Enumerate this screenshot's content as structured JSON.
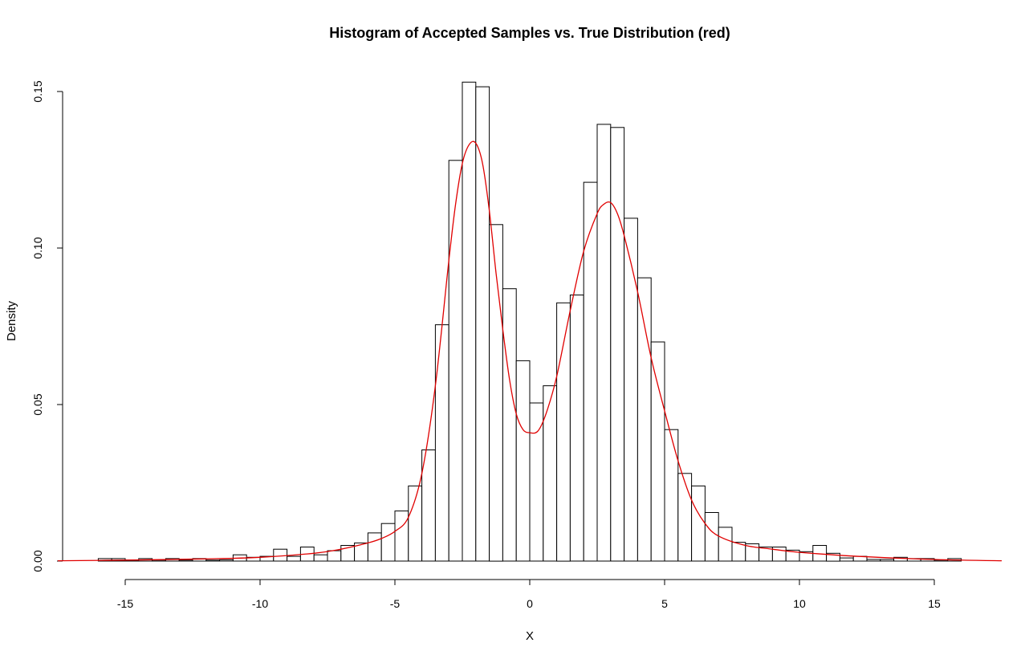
{
  "chart_data": {
    "type": "bar",
    "title": "Histogram of Accepted Samples vs. True Distribution (red)",
    "xlabel": "X",
    "ylabel": "Density",
    "xlim": [
      -17.5,
      17.5
    ],
    "ylim": [
      0,
      0.15
    ],
    "x_ticks": [
      "-15",
      "-10",
      "-5",
      "0",
      "5",
      "10",
      "15"
    ],
    "y_ticks": [
      "0.00",
      "0.05",
      "0.10",
      "0.15"
    ],
    "grid": false,
    "legend": "none",
    "bin_width": 0.5,
    "bins": [
      {
        "start": -16.0,
        "value": 0.0008
      },
      {
        "start": -15.5,
        "value": 0.0008
      },
      {
        "start": -15.0,
        "value": 0.0003
      },
      {
        "start": -14.5,
        "value": 0.0008
      },
      {
        "start": -14.0,
        "value": 0.0003
      },
      {
        "start": -13.5,
        "value": 0.0008
      },
      {
        "start": -13.0,
        "value": 0.0003
      },
      {
        "start": -12.5,
        "value": 0.0008
      },
      {
        "start": -12.0,
        "value": 0.0003
      },
      {
        "start": -11.5,
        "value": 0.0004
      },
      {
        "start": -11.0,
        "value": 0.002
      },
      {
        "start": -10.5,
        "value": 0.0012
      },
      {
        "start": -10.0,
        "value": 0.0015
      },
      {
        "start": -9.5,
        "value": 0.0038
      },
      {
        "start": -9.0,
        "value": 0.0015
      },
      {
        "start": -8.5,
        "value": 0.0045
      },
      {
        "start": -8.0,
        "value": 0.002
      },
      {
        "start": -7.5,
        "value": 0.0033
      },
      {
        "start": -7.0,
        "value": 0.005
      },
      {
        "start": -6.5,
        "value": 0.0058
      },
      {
        "start": -6.0,
        "value": 0.009
      },
      {
        "start": -5.5,
        "value": 0.012
      },
      {
        "start": -5.0,
        "value": 0.016
      },
      {
        "start": -4.5,
        "value": 0.024
      },
      {
        "start": -4.0,
        "value": 0.0355
      },
      {
        "start": -3.5,
        "value": 0.0755
      },
      {
        "start": -3.0,
        "value": 0.128
      },
      {
        "start": -2.5,
        "value": 0.153
      },
      {
        "start": -2.0,
        "value": 0.1515
      },
      {
        "start": -1.5,
        "value": 0.1075
      },
      {
        "start": -1.0,
        "value": 0.087
      },
      {
        "start": -0.5,
        "value": 0.064
      },
      {
        "start": 0.0,
        "value": 0.0505
      },
      {
        "start": 0.5,
        "value": 0.056
      },
      {
        "start": 1.0,
        "value": 0.0825
      },
      {
        "start": 1.5,
        "value": 0.085
      },
      {
        "start": 2.0,
        "value": 0.121
      },
      {
        "start": 2.5,
        "value": 0.1395
      },
      {
        "start": 3.0,
        "value": 0.1385
      },
      {
        "start": 3.5,
        "value": 0.1095
      },
      {
        "start": 4.0,
        "value": 0.0905
      },
      {
        "start": 4.5,
        "value": 0.07
      },
      {
        "start": 5.0,
        "value": 0.042
      },
      {
        "start": 5.5,
        "value": 0.028
      },
      {
        "start": 6.0,
        "value": 0.024
      },
      {
        "start": 6.5,
        "value": 0.0155
      },
      {
        "start": 7.0,
        "value": 0.0108
      },
      {
        "start": 7.5,
        "value": 0.006
      },
      {
        "start": 8.0,
        "value": 0.0055
      },
      {
        "start": 8.5,
        "value": 0.0045
      },
      {
        "start": 9.0,
        "value": 0.0045
      },
      {
        "start": 9.5,
        "value": 0.0035
      },
      {
        "start": 10.0,
        "value": 0.003
      },
      {
        "start": 10.5,
        "value": 0.005
      },
      {
        "start": 11.0,
        "value": 0.0025
      },
      {
        "start": 11.5,
        "value": 0.001
      },
      {
        "start": 12.0,
        "value": 0.0015
      },
      {
        "start": 12.5,
        "value": 0.0005
      },
      {
        "start": 13.0,
        "value": 0.0005
      },
      {
        "start": 13.5,
        "value": 0.0012
      },
      {
        "start": 14.0,
        "value": 0.0008
      },
      {
        "start": 14.5,
        "value": 0.0008
      },
      {
        "start": 15.0,
        "value": 0.0003
      },
      {
        "start": 15.5,
        "value": 0.0008
      }
    ],
    "true_density": {
      "x": [
        -17.5,
        -15,
        -12,
        -10,
        -8,
        -7,
        -6,
        -5.5,
        -5,
        -4.5,
        -4,
        -3.5,
        -3,
        -2.75,
        -2.5,
        -2.25,
        -2,
        -1.75,
        -1.5,
        -1.25,
        -1,
        -0.75,
        -0.5,
        -0.25,
        0,
        0.3,
        0.6,
        1,
        1.5,
        2,
        2.5,
        2.75,
        3,
        3.25,
        3.5,
        4,
        4.5,
        5,
        5.5,
        6,
        6.5,
        7,
        8,
        9,
        10,
        12,
        15,
        17.5
      ],
      "y": [
        0.0001,
        0.0003,
        0.0007,
        0.0012,
        0.0025,
        0.0038,
        0.0058,
        0.0072,
        0.0095,
        0.014,
        0.028,
        0.056,
        0.096,
        0.114,
        0.127,
        0.133,
        0.1335,
        0.127,
        0.112,
        0.092,
        0.074,
        0.058,
        0.047,
        0.042,
        0.041,
        0.0415,
        0.047,
        0.059,
        0.08,
        0.099,
        0.111,
        0.114,
        0.1145,
        0.111,
        0.104,
        0.086,
        0.065,
        0.048,
        0.032,
        0.0195,
        0.012,
        0.008,
        0.005,
        0.0038,
        0.0028,
        0.0016,
        0.0005,
        0.0001
      ],
      "color": "#e00000"
    }
  }
}
